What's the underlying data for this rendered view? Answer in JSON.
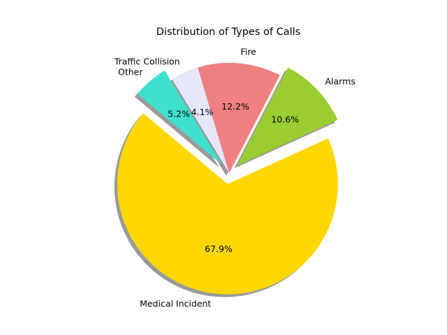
{
  "chart_data": {
    "type": "pie",
    "title": "Distribution of Types of Calls",
    "slices": [
      {
        "label": "Medical Incident",
        "value": 67.9,
        "pct_text": "67.9%",
        "color": "#FFD700",
        "exploded": true
      },
      {
        "label": "Alarms",
        "value": 10.6,
        "pct_text": "10.6%",
        "color": "#9ACD32",
        "exploded": true
      },
      {
        "label": "Fire",
        "value": 12.2,
        "pct_text": "12.2%",
        "color": "#F08080",
        "exploded": false
      },
      {
        "label": "Traffic Collision",
        "value": 4.1,
        "pct_text": "4.1%",
        "color": "#E6E6FA",
        "exploded": false
      },
      {
        "label": "Other",
        "value": 5.2,
        "pct_text": "5.2%",
        "color": "#40E0D0",
        "exploded": true
      }
    ],
    "start_angle_deg": 140,
    "direction": "counterclockwise",
    "shadow": true,
    "legend": "none"
  }
}
